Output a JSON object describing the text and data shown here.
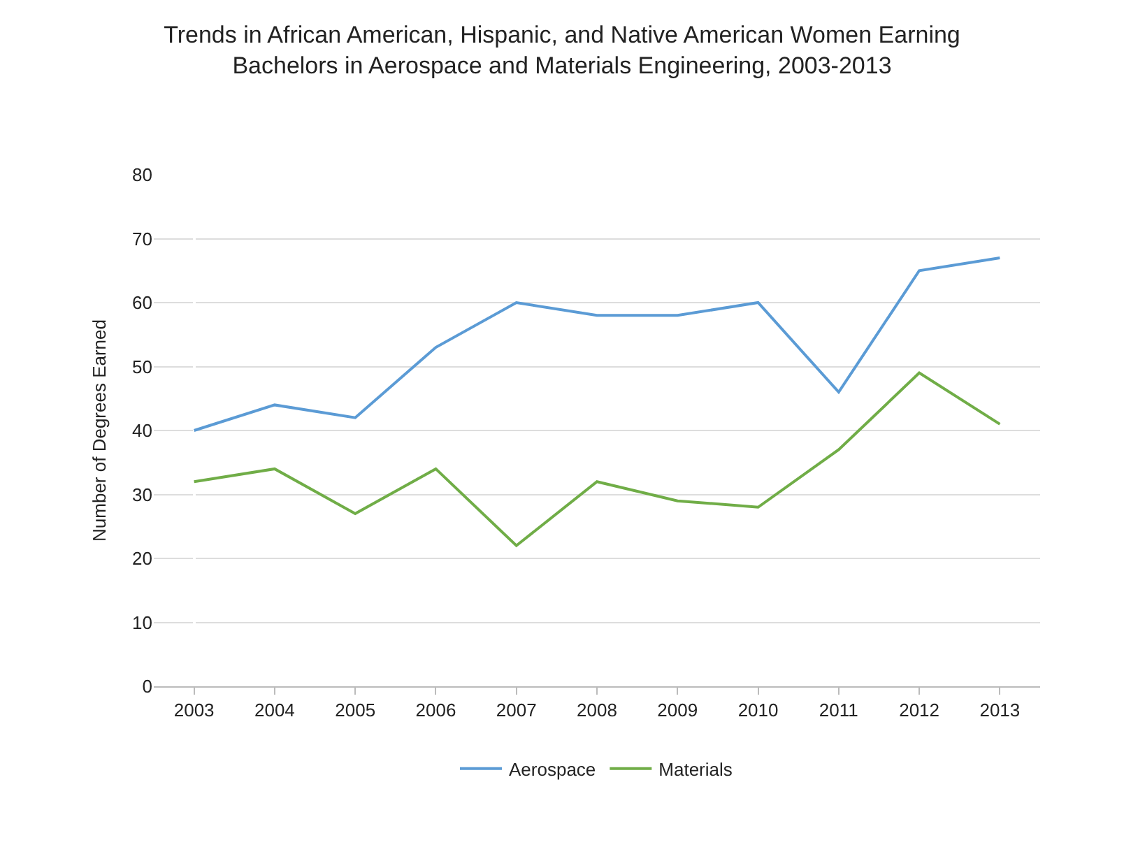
{
  "chart_data": {
    "type": "line",
    "title": "Trends in African American, Hispanic, and Native American Women Earning Bachelors in Aerospace and Materials Engineering, 2003-2013",
    "ylabel": "Number of Degrees Earned",
    "categories": [
      "2003",
      "2004",
      "2005",
      "2006",
      "2007",
      "2008",
      "2009",
      "2010",
      "2011",
      "2012",
      "2013"
    ],
    "series": [
      {
        "name": "Aerospace",
        "color": "#5b9bd5",
        "values": [
          40,
          44,
          42,
          53,
          60,
          58,
          58,
          60,
          46,
          65,
          67
        ]
      },
      {
        "name": "Materials",
        "color": "#70ad47",
        "values": [
          32,
          34,
          27,
          34,
          22,
          32,
          29,
          28,
          37,
          49,
          41
        ]
      }
    ],
    "ylim": [
      0,
      80
    ],
    "yticks": [
      0,
      10,
      20,
      30,
      40,
      50,
      60,
      70,
      80
    ],
    "grid": "y",
    "legend": "bottom",
    "marker": "none",
    "line_style": "solid"
  }
}
